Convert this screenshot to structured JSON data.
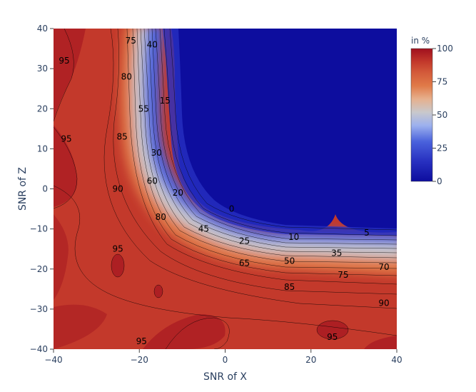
{
  "chart_data": {
    "type": "heatmap",
    "subtype": "filled-contour",
    "xlabel": "SNR of X",
    "ylabel": "SNR of Z",
    "xlim": [
      -40,
      40
    ],
    "ylim": [
      -40,
      40
    ],
    "x_ticks": [
      "−40",
      "−20",
      "0",
      "20",
      "40"
    ],
    "x_tick_values": [
      -40,
      -20,
      0,
      20,
      40
    ],
    "y_ticks": [
      "−40",
      "−30",
      "−20",
      "−10",
      "0",
      "10",
      "20",
      "30",
      "40"
    ],
    "y_tick_values": [
      -40,
      -30,
      -20,
      -10,
      0,
      10,
      20,
      30,
      40
    ],
    "colorbar": {
      "title": "in %",
      "range": [
        0,
        100
      ],
      "ticks": [
        "0",
        "25",
        "50",
        "75",
        "100"
      ],
      "tick_values": [
        0,
        25,
        50,
        75,
        100
      ],
      "colorscale": [
        "#0d0d9e",
        "#3a4fd6",
        "#8fa6ec",
        "#c8c8d0",
        "#e08850",
        "#c63a2a",
        "#a01020"
      ]
    },
    "contour_levels": [
      0,
      5,
      10,
      15,
      20,
      25,
      30,
      35,
      40,
      45,
      50,
      55,
      60,
      65,
      70,
      75,
      80,
      85,
      90,
      95,
      100
    ],
    "contour_labels": [
      {
        "text": "75",
        "x": -22,
        "y": 37
      },
      {
        "text": "40",
        "x": -17,
        "y": 36
      },
      {
        "text": "95",
        "x": -37.5,
        "y": 32
      },
      {
        "text": "80",
        "x": -23,
        "y": 28
      },
      {
        "text": "15",
        "x": -14,
        "y": 22
      },
      {
        "text": "55",
        "x": -19,
        "y": 20
      },
      {
        "text": "85",
        "x": -24,
        "y": 13
      },
      {
        "text": "95",
        "x": -37,
        "y": 12.5
      },
      {
        "text": "30",
        "x": -16,
        "y": 9
      },
      {
        "text": "60",
        "x": -17,
        "y": 2
      },
      {
        "text": "90",
        "x": -25,
        "y": 0
      },
      {
        "text": "20",
        "x": -11,
        "y": -1
      },
      {
        "text": "0",
        "x": 1.5,
        "y": -5
      },
      {
        "text": "80",
        "x": -15,
        "y": -7
      },
      {
        "text": "45",
        "x": -5,
        "y": -10
      },
      {
        "text": "25",
        "x": 4.5,
        "y": -13
      },
      {
        "text": "10",
        "x": 16,
        "y": -12
      },
      {
        "text": "5",
        "x": 33,
        "y": -11
      },
      {
        "text": "95",
        "x": -25,
        "y": -15
      },
      {
        "text": "35",
        "x": 26,
        "y": -16
      },
      {
        "text": "50",
        "x": 15,
        "y": -18
      },
      {
        "text": "65",
        "x": 4.5,
        "y": -18.5
      },
      {
        "text": "70",
        "x": 37,
        "y": -19.5
      },
      {
        "text": "75",
        "x": 27.5,
        "y": -21.5
      },
      {
        "text": "85",
        "x": 15,
        "y": -24.5
      },
      {
        "text": "90",
        "x": 37,
        "y": -28.5
      },
      {
        "text": "95",
        "x": 25,
        "y": -37
      },
      {
        "text": "95",
        "x": -19.5,
        "y": -38
      }
    ]
  }
}
